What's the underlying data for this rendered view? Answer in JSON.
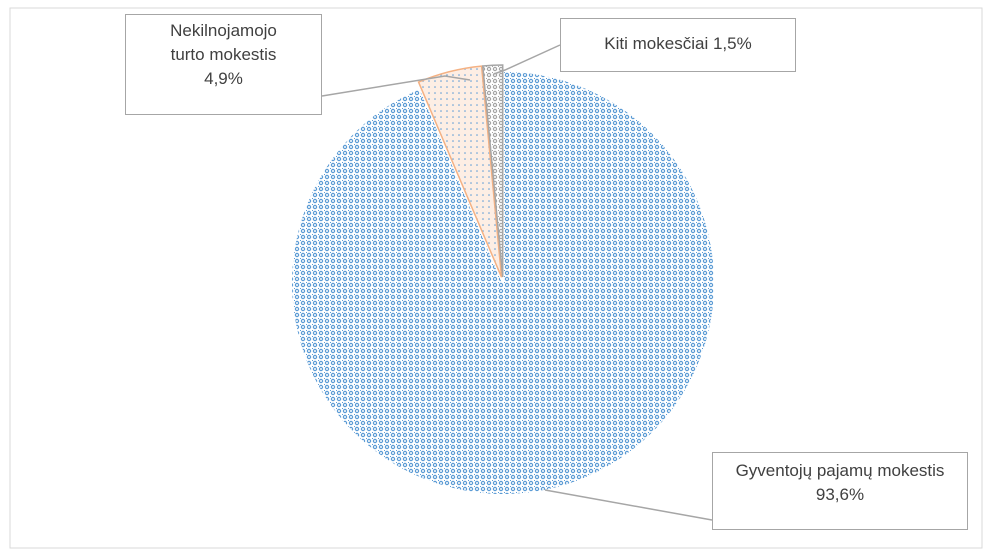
{
  "chart_data": {
    "type": "pie",
    "categories": [
      "Gyventojų pajamų mokestis",
      "Nekilnojamojo turto mokestis",
      "Kiti mokesčiai"
    ],
    "values": [
      93.6,
      4.9,
      1.5
    ],
    "value_labels": [
      "93,6%",
      "4,9%",
      "1,5%"
    ],
    "colors": [
      "#5b9bd5",
      "#f4b183",
      "#a5a5a5"
    ]
  }
}
